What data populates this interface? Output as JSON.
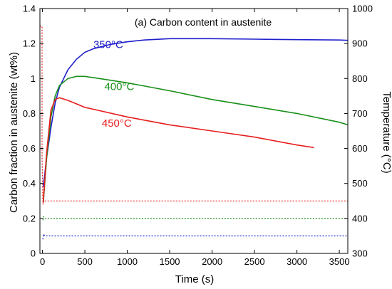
{
  "chart_data": {
    "type": "line",
    "title": "(a) Carbon content in austenite",
    "xlabel": "Time (s)",
    "ylabel": "Carbon fraction in austenite (wt%)",
    "y2label": "Temperature (°C)",
    "xlim": [
      -30,
      3600
    ],
    "ylim": [
      0,
      1.4
    ],
    "y2lim": [
      300,
      1000
    ],
    "xticks": [
      0,
      500,
      1000,
      1500,
      2000,
      2500,
      3000,
      3500
    ],
    "xtick_labels": [
      "0",
      "500",
      "1000",
      "1500",
      "2000",
      "2500",
      "3000",
      "3500"
    ],
    "yticks": [
      0,
      0.2,
      0.4,
      0.6,
      0.8,
      1.0,
      1.2,
      1.4
    ],
    "ytick_labels": [
      "0",
      "0.2",
      "0.4",
      "0.6",
      "0.8",
      "1",
      "1.2",
      "1.4"
    ],
    "y2ticks": [
      300,
      400,
      500,
      600,
      700,
      800,
      900,
      1000
    ],
    "y2tick_labels": [
      "300",
      "400",
      "500",
      "600",
      "700",
      "800",
      "900",
      "1000"
    ],
    "grid": false,
    "legend": "none",
    "series": [
      {
        "name": "350°C",
        "axis": "left",
        "style": "solid",
        "color": "#1f1fcc",
        "label_at": [
          600,
          1.175
        ],
        "x": [
          10,
          50,
          100,
          150,
          200,
          300,
          400,
          500,
          600,
          800,
          1000,
          1200,
          1500,
          2000,
          2500,
          3000,
          3500,
          3600
        ],
        "y": [
          0.38,
          0.55,
          0.72,
          0.86,
          0.95,
          1.05,
          1.11,
          1.15,
          1.17,
          1.195,
          1.21,
          1.22,
          1.228,
          1.228,
          1.225,
          1.222,
          1.22,
          1.218
        ]
      },
      {
        "name": "400°C",
        "axis": "left",
        "style": "solid",
        "color": "#1a8f1a",
        "label_at": [
          730,
          0.935
        ],
        "x": [
          10,
          50,
          100,
          150,
          200,
          300,
          400,
          500,
          600,
          800,
          1000,
          1500,
          2000,
          2500,
          3000,
          3500,
          3600
        ],
        "y": [
          0.29,
          0.55,
          0.78,
          0.9,
          0.96,
          1.0,
          1.012,
          1.012,
          1.005,
          0.99,
          0.975,
          0.93,
          0.88,
          0.84,
          0.8,
          0.75,
          0.735
        ]
      },
      {
        "name": "450°C",
        "axis": "left",
        "style": "solid",
        "color": "#e81e1e",
        "label_at": [
          700,
          0.725
        ],
        "x": [
          10,
          50,
          100,
          150,
          200,
          300,
          500,
          1000,
          1500,
          2000,
          2500,
          3000,
          3200
        ],
        "y": [
          0.3,
          0.58,
          0.82,
          0.88,
          0.89,
          0.875,
          0.835,
          0.78,
          0.735,
          0.7,
          0.665,
          0.62,
          0.605
        ]
      },
      {
        "name": "",
        "axis": "right",
        "style": "dashed",
        "color": "#e81e1e",
        "x": [
          -30,
          -5,
          -5,
          5,
          15,
          50,
          3600
        ],
        "y": [
          950,
          950,
          580,
          440,
          450,
          450,
          450
        ]
      },
      {
        "name": "",
        "axis": "right",
        "style": "dashed",
        "color": "#1a8f1a",
        "x": [
          5,
          12,
          30,
          3600
        ],
        "y": [
          395,
          405,
          400,
          400
        ]
      },
      {
        "name": "",
        "axis": "right",
        "style": "dashed",
        "color": "#1f1fcc",
        "x": [
          5,
          12,
          30,
          3600
        ],
        "y": [
          340,
          355,
          350,
          350
        ]
      }
    ]
  }
}
